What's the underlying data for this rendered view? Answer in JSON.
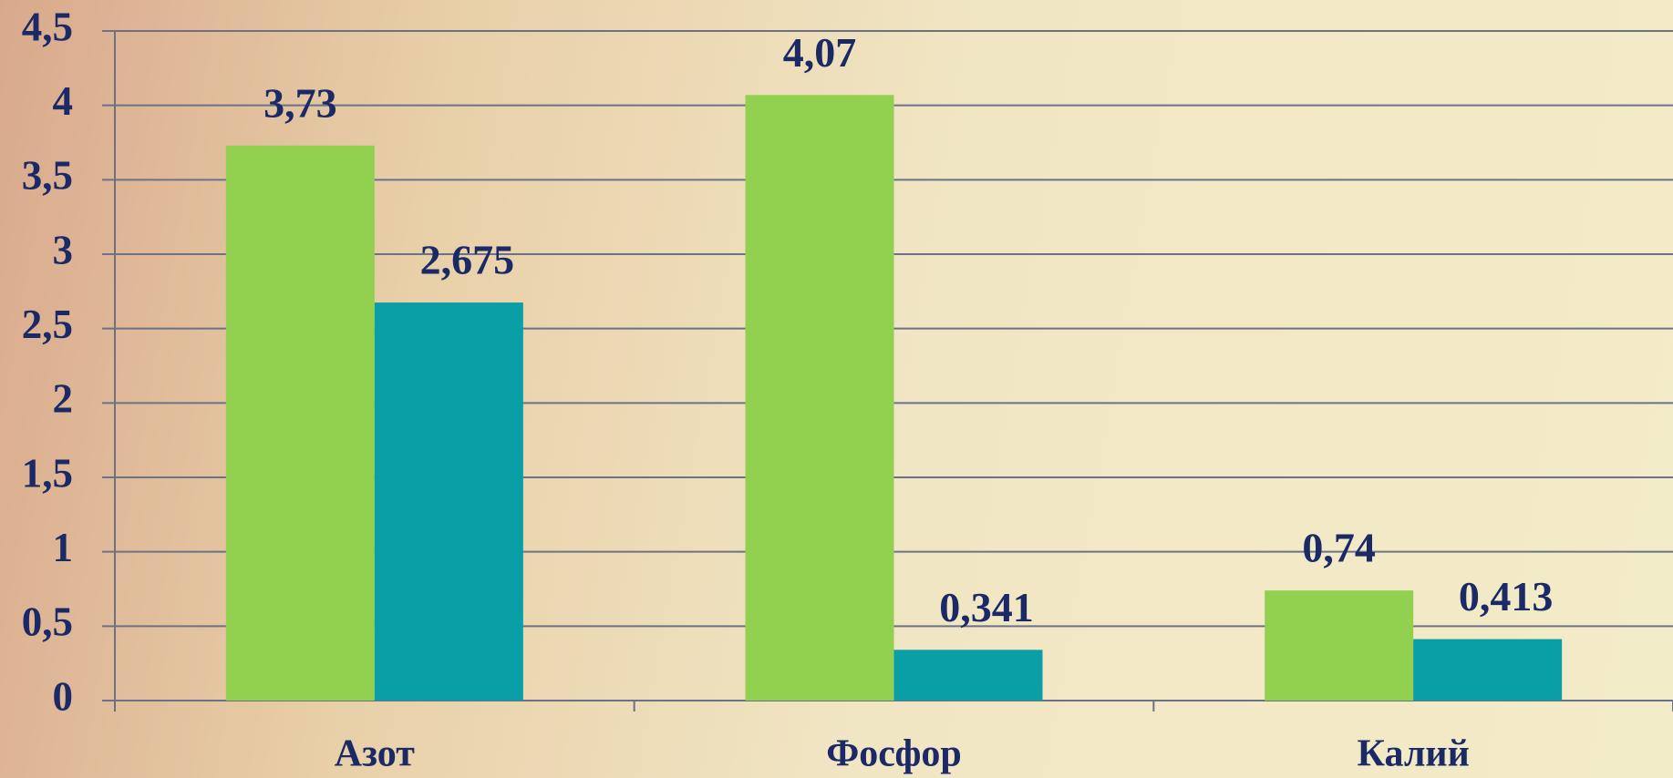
{
  "chart_data": {
    "type": "bar",
    "categories": [
      "Азот",
      "Фосфор",
      "Калий"
    ],
    "series": [
      {
        "color": "#92d050",
        "values": [
          3.73,
          4.07,
          0.74
        ],
        "value_labels": [
          "3,73",
          "4,07",
          "0,74"
        ]
      },
      {
        "color": "#0a9ea6",
        "values": [
          2.675,
          0.341,
          0.413
        ],
        "value_labels": [
          "2,675",
          "0,341",
          "0,413"
        ]
      }
    ],
    "ylim": [
      0,
      4.5
    ],
    "yticks": [
      0,
      {
        "value": 0.5,
        "label": "0,5"
      },
      1,
      {
        "value": 1.5,
        "label": "1,5"
      },
      2,
      {
        "value": 2.5,
        "label": "2,5"
      },
      3,
      {
        "value": 3.5,
        "label": "3,5"
      },
      4,
      {
        "value": 4.5,
        "label": "4,5"
      }
    ],
    "grid": true
  }
}
